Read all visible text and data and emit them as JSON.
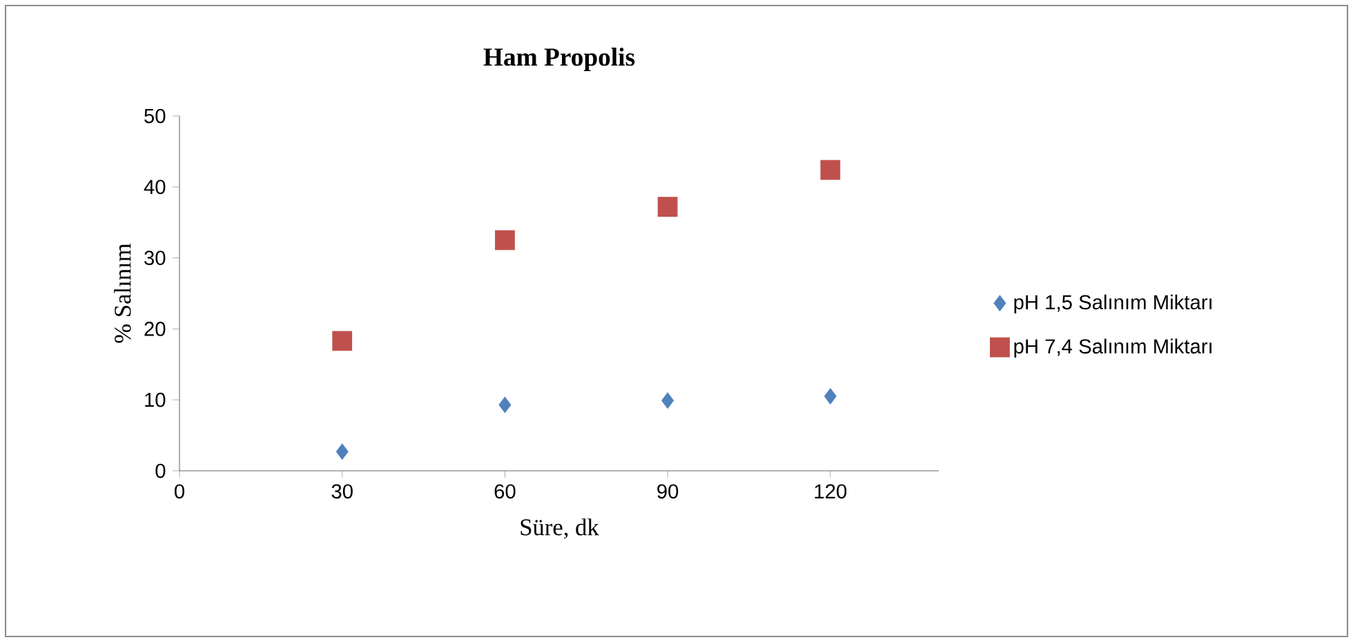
{
  "chart_data": {
    "type": "scatter",
    "title": "Ham Propolis",
    "xlabel": "Süre, dk",
    "ylabel": "% Salınım",
    "x": [
      30,
      60,
      90,
      120
    ],
    "series": [
      {
        "name": "pH 1,5 Salınım Miktarı",
        "color": "#4f81bd",
        "marker": "diamond",
        "values": [
          2.7,
          9.3,
          9.9,
          10.5
        ]
      },
      {
        "name": "pH 7,4 Salınım Miktarı",
        "color": "#c0504d",
        "marker": "square",
        "values": [
          18.3,
          32.5,
          37.2,
          42.4
        ]
      }
    ],
    "xlim": [
      0,
      140
    ],
    "xticks": [
      0,
      30,
      60,
      90,
      120
    ],
    "ylim": [
      0,
      50
    ],
    "yticks": [
      0,
      10,
      20,
      30,
      40,
      50
    ],
    "grid": false,
    "legend": "right"
  }
}
